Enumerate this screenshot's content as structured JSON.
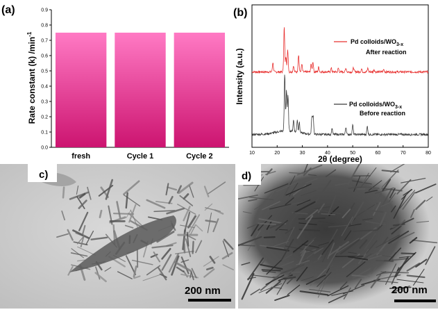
{
  "colors": {
    "bar_top": "#ff7ac4",
    "bar_bottom": "#cc1470",
    "xrd_after": "#e8302f",
    "xrd_before": "#3a3a3a"
  },
  "chart_data": [
    {
      "panel": "(a)",
      "type": "bar",
      "ylabel": "Rate constant (k) /min",
      "ylabel_sup": "-1",
      "categories": [
        "fresh",
        "Cycle 1",
        "Cycle 2"
      ],
      "values": [
        0.75,
        0.75,
        0.75
      ],
      "ylim": [
        0,
        0.9
      ],
      "yticks": [
        "0.0",
        "0.1",
        "0.2",
        "0.3",
        "0.4",
        "0.5",
        "0.6",
        "0.7",
        "0.8",
        "0.9"
      ],
      "grid": false
    },
    {
      "panel": "(b)",
      "type": "line",
      "xlabel": "2θ (degree)",
      "ylabel": "Intensity (a.u.)",
      "xlim": [
        10,
        80
      ],
      "xticks": [
        "10",
        "20",
        "30",
        "40",
        "50",
        "60",
        "70",
        "80"
      ],
      "y_tick_labels": false,
      "grid": false,
      "series": [
        {
          "name": "Pd colloids/WO3-x After reaction",
          "legend_line1": "Pd colloids/WO",
          "legend_sub": "3-x",
          "legend_line2": "After reaction",
          "offset": 1.0,
          "baseline": 0.05,
          "peaks": [
            [
              18.3,
              0.15
            ],
            [
              22.8,
              0.72
            ],
            [
              23.5,
              0.25
            ],
            [
              24.2,
              0.35
            ],
            [
              26.5,
              0.1
            ],
            [
              28.5,
              0.28
            ],
            [
              29.8,
              0.12
            ],
            [
              33.5,
              0.12
            ],
            [
              34.2,
              0.16
            ],
            [
              36.5,
              0.08
            ],
            [
              41.5,
              0.06
            ],
            [
              44.3,
              0.06
            ],
            [
              47.3,
              0.06
            ],
            [
              50.3,
              0.07
            ],
            [
              53.5,
              0.05
            ],
            [
              56.0,
              0.06
            ],
            [
              58.5,
              0.04
            ],
            [
              62.3,
              0.04
            ]
          ]
        },
        {
          "name": "Pd colloids/WO3-x Before reaction",
          "legend_line1": "Pd colloids/WO",
          "legend_sub": "3-x",
          "legend_line2": "Before reaction",
          "offset": 0.0,
          "baseline": 0.05,
          "peaks": [
            [
              23.0,
              0.9
            ],
            [
              23.7,
              0.65
            ],
            [
              24.3,
              0.55
            ],
            [
              26.5,
              0.18
            ],
            [
              28.0,
              0.2
            ],
            [
              28.8,
              0.16
            ],
            [
              33.8,
              0.28
            ],
            [
              34.3,
              0.3
            ],
            [
              41.8,
              0.1
            ],
            [
              47.3,
              0.12
            ],
            [
              50.0,
              0.15
            ],
            [
              55.8,
              0.13
            ]
          ]
        }
      ]
    }
  ],
  "tem": {
    "c": {
      "label": "c)",
      "scale": "200 nm"
    },
    "d": {
      "label": "d)",
      "scale": "200 nm"
    }
  }
}
